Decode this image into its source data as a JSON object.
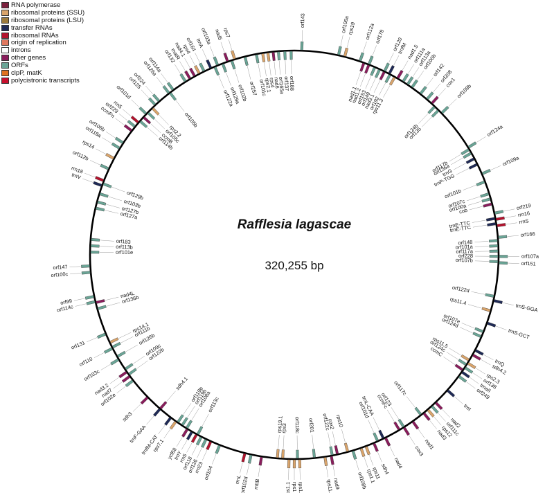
{
  "legend": [
    {
      "label": "RNA polymerase",
      "color": "#7a1f3d"
    },
    {
      "label": "ribosomal proteins (SSU)",
      "color": "#d9a46b"
    },
    {
      "label": "ribosomal proteins (LSU)",
      "color": "#9c7a3c"
    },
    {
      "label": "transfer RNAs",
      "color": "#1f2a56"
    },
    {
      "label": "ribosomal RNAs",
      "color": "#b3122d"
    },
    {
      "label": "origin of replication",
      "color": "#e0785f"
    },
    {
      "label": "introns",
      "color": "#ffffff"
    },
    {
      "label": "other genes",
      "color": "#8a1c5c"
    },
    {
      "label": "ORFs",
      "color": "#6aa596"
    },
    {
      "label": "clpP, matK",
      "color": "#e0721e"
    },
    {
      "label": "polycistronic transcripts",
      "color": "#c8102e"
    }
  ],
  "genome": {
    "title": "Rafflesia lagascae",
    "size": "320,255 bp"
  },
  "genes": [
    {
      "name": "orf143",
      "pos": 0.7,
      "cat": "ORFs",
      "side": "out"
    },
    {
      "name": "orf106a",
      "pos": 4.2,
      "cat": "ORFs",
      "side": "out"
    },
    {
      "name": "rps19",
      "pos": 4.8,
      "cat": "ribosomal proteins (SSU)",
      "side": "out"
    },
    {
      "name": "orf112a",
      "pos": 6.3,
      "cat": "ORFs",
      "side": "out"
    },
    {
      "name": "orf178",
      "pos": 7.2,
      "cat": "ORFs",
      "side": "out"
    },
    {
      "name": "orf120",
      "pos": 8.8,
      "cat": "ORFs",
      "side": "out"
    },
    {
      "name": "trnfM",
      "pos": 9.3,
      "cat": "transfer RNAs",
      "side": "out"
    },
    {
      "name": "nad1.5",
      "pos": 10.2,
      "cat": "other genes",
      "side": "out"
    },
    {
      "name": "orf111a",
      "pos": 10.8,
      "cat": "ORFs",
      "side": "out"
    },
    {
      "name": "orf113a",
      "pos": 11.3,
      "cat": "ORFs",
      "side": "out"
    },
    {
      "name": "orf100b",
      "pos": 11.8,
      "cat": "ORFs",
      "side": "out"
    },
    {
      "name": "orf142",
      "pos": 12.8,
      "cat": "ORFs",
      "side": "out"
    },
    {
      "name": "orf208",
      "pos": 13.6,
      "cat": "ORFs",
      "side": "out"
    },
    {
      "name": "cox1",
      "pos": 14.2,
      "cat": "other genes",
      "side": "out"
    },
    {
      "name": "orf109b",
      "pos": 15.5,
      "cat": "ORFs",
      "side": "out"
    },
    {
      "name": "orf124a",
      "pos": 19.6,
      "cat": "ORFs",
      "side": "out"
    },
    {
      "name": "orf109a",
      "pos": 22.4,
      "cat": "ORFs",
      "side": "out"
    },
    {
      "name": "orf219",
      "pos": 26.3,
      "cat": "ORFs",
      "side": "out"
    },
    {
      "name": "rrn16",
      "pos": 26.9,
      "cat": "ribosomal RNAs",
      "side": "out"
    },
    {
      "name": "rrnS",
      "pos": 27.5,
      "cat": "ribosomal RNAs",
      "side": "out"
    },
    {
      "name": "orf166",
      "pos": 28.6,
      "cat": "ORFs",
      "side": "out"
    },
    {
      "name": "orf107a",
      "pos": 30.4,
      "cat": "ORFs",
      "side": "out"
    },
    {
      "name": "orf151",
      "pos": 31.0,
      "cat": "ORFs",
      "side": "out"
    },
    {
      "name": "trnS-GGA",
      "pos": 34.6,
      "cat": "transfer RNAs",
      "side": "out"
    },
    {
      "name": "trnS-GCT",
      "pos": 36.8,
      "cat": "transfer RNAs",
      "side": "out"
    },
    {
      "name": "trnQ",
      "pos": 39.6,
      "cat": "transfer RNAs",
      "side": "out"
    },
    {
      "name": "sdh4.2",
      "pos": 40.1,
      "cat": "other genes",
      "side": "out"
    },
    {
      "name": "rps2.3",
      "pos": 41.0,
      "cat": "ribosomal proteins (SSU)",
      "side": "out"
    },
    {
      "name": "orf138",
      "pos": 41.5,
      "cat": "ORFs",
      "side": "out"
    },
    {
      "name": "trnaII",
      "pos": 42.0,
      "cat": "transfer RNAs",
      "side": "out"
    },
    {
      "name": "orf249",
      "pos": 42.5,
      "cat": "ORFs",
      "side": "out"
    },
    {
      "name": "trnI",
      "pos": 44.2,
      "cat": "transfer RNAs",
      "side": "out"
    },
    {
      "name": "nad2",
      "pos": 45.8,
      "cat": "other genes",
      "side": "out"
    },
    {
      "name": "orf111c",
      "pos": 46.3,
      "cat": "ORFs",
      "side": "out"
    },
    {
      "name": "rps12",
      "pos": 46.8,
      "cat": "ribosomal proteins (SSU)",
      "side": "out"
    },
    {
      "name": "nad3",
      "pos": 47.3,
      "cat": "other genes",
      "side": "out"
    },
    {
      "name": "nad1",
      "pos": 48.6,
      "cat": "other genes",
      "side": "out"
    },
    {
      "name": "cox3",
      "pos": 49.6,
      "cat": "other genes",
      "side": "out"
    },
    {
      "name": "nad4",
      "pos": 51.6,
      "cat": "other genes",
      "side": "out"
    },
    {
      "name": "sdh4",
      "pos": 52.8,
      "cat": "other genes",
      "side": "out"
    },
    {
      "name": "rps11",
      "pos": 53.6,
      "cat": "ribosomal proteins (SSU)",
      "side": "out"
    },
    {
      "name": "rps1.1",
      "pos": 54.1,
      "cat": "ribosomal proteins (SSU)",
      "side": "out"
    },
    {
      "name": "orf108b",
      "pos": 54.9,
      "cat": "ORFs",
      "side": "out"
    },
    {
      "name": "nad9",
      "pos": 57.0,
      "cat": "other genes",
      "side": "out"
    },
    {
      "name": "rps11.2",
      "pos": 57.6,
      "cat": "ribosomal proteins (SSU)",
      "side": "out"
    },
    {
      "name": "rps1.2",
      "pos": 60.0,
      "cat": "ribosomal proteins (SSU)",
      "side": "out"
    },
    {
      "name": "rps1",
      "pos": 60.5,
      "cat": "ribosomal proteins (SSU)",
      "side": "out"
    },
    {
      "name": "rps1.1",
      "pos": 61.0,
      "cat": "ribosomal proteins (SSU)",
      "side": "out"
    },
    {
      "name": "orf104",
      "pos": 67.7,
      "cat": "ORFs",
      "side": "out"
    },
    {
      "name": "orf102d",
      "pos": 64.6,
      "cat": "ORFs",
      "side": "out"
    },
    {
      "name": "rrnL",
      "pos": 65.2,
      "cat": "ribosomal RNAs",
      "side": "out"
    },
    {
      "name": "mttB",
      "pos": 63.6,
      "cat": "other genes",
      "side": "out"
    },
    {
      "name": "rrn23",
      "pos": 68.6,
      "cat": "ribosomal RNAs",
      "side": "out"
    },
    {
      "name": "orf126",
      "pos": 69.1,
      "cat": "ORFs",
      "side": "out"
    },
    {
      "name": "orf118",
      "pos": 69.6,
      "cat": "ORFs",
      "side": "out"
    },
    {
      "name": "rrn5",
      "pos": 70.1,
      "cat": "ribosomal RNAs",
      "side": "out"
    },
    {
      "name": "trnY",
      "pos": 70.6,
      "cat": "transfer RNAs",
      "side": "out"
    },
    {
      "name": "ycf68",
      "pos": 71.1,
      "cat": "other genes",
      "side": "out"
    },
    {
      "name": "rps7.1",
      "pos": 72.4,
      "cat": "ribosomal proteins (SSU)",
      "side": "out"
    },
    {
      "name": "trnfM-CAT",
      "pos": 73.0,
      "cat": "transfer RNAs",
      "side": "out"
    },
    {
      "name": "trnF-GAA",
      "pos": 74.3,
      "cat": "transfer RNAs",
      "side": "out"
    },
    {
      "name": "sdh3",
      "pos": 75.9,
      "cat": "other genes",
      "side": "out"
    },
    {
      "name": "orf102e",
      "pos": 78.0,
      "cat": "ORFs",
      "side": "out"
    },
    {
      "name": "nad7",
      "pos": 78.5,
      "cat": "other genes",
      "side": "out"
    },
    {
      "name": "nad3.2",
      "pos": 79.0,
      "cat": "other genes",
      "side": "out"
    },
    {
      "name": "orf103c",
      "pos": 80.4,
      "cat": "ORFs",
      "side": "out"
    },
    {
      "name": "orf110",
      "pos": 81.6,
      "cat": "ORFs",
      "side": "out"
    },
    {
      "name": "orf131",
      "pos": 83.1,
      "cat": "ORFs",
      "side": "out"
    },
    {
      "name": "orf114c",
      "pos": 86.3,
      "cat": "ORFs",
      "side": "out"
    },
    {
      "name": "orf99",
      "pos": 86.8,
      "cat": "ORFs",
      "side": "out"
    },
    {
      "name": "orf100c",
      "pos": 89.1,
      "cat": "ORFs",
      "side": "out"
    },
    {
      "name": "orf147",
      "pos": 89.7,
      "cat": "ORFs",
      "side": "out"
    },
    {
      "name": "trnV",
      "pos": 97.4,
      "cat": "transfer RNAs",
      "side": "out"
    },
    {
      "name": "rrn18",
      "pos": 97.9,
      "cat": "ribosomal RNAs",
      "side": "out"
    },
    {
      "name": "orf112b",
      "pos": 99.1,
      "cat": "ORFs",
      "side": "out"
    },
    {
      "name": "rps14",
      "pos": 100.2,
      "cat": "ribosomal proteins (SSU)",
      "side": "out"
    },
    {
      "name": "orf118a",
      "pos": 101.3,
      "cat": "ORFs",
      "side": "out"
    },
    {
      "name": "orf106b",
      "pos": 101.9,
      "cat": "ORFs",
      "side": "out"
    },
    {
      "name": "ccmFn",
      "pos": 103.3,
      "cat": "other genes",
      "side": "out"
    },
    {
      "name": "orf229",
      "pos": 103.8,
      "cat": "ORFs",
      "side": "out"
    },
    {
      "name": "rrn5",
      "pos": 104.3,
      "cat": "ribosomal RNAs",
      "side": "out"
    },
    {
      "name": "orf101d",
      "pos": 105.4,
      "cat": "ORFs",
      "side": "out"
    },
    {
      "name": "orf125",
      "pos": 106.6,
      "cat": "ORFs",
      "side": "out"
    },
    {
      "name": "orf224",
      "pos": 107.1,
      "cat": "ORFs",
      "side": "out"
    },
    {
      "name": "orf126a",
      "pos": 108.3,
      "cat": "ORFs",
      "side": "out"
    },
    {
      "name": "orf114a",
      "pos": 108.8,
      "cat": "ORFs",
      "side": "out"
    },
    {
      "name": "orf132",
      "pos": 110.2,
      "cat": "ORFs",
      "side": "out"
    },
    {
      "name": "matR",
      "pos": 110.7,
      "cat": "other genes",
      "side": "out"
    },
    {
      "name": "nad4.1",
      "pos": 111.2,
      "cat": "other genes",
      "side": "out"
    },
    {
      "name": "rps4",
      "pos": 111.7,
      "cat": "ribosomal proteins (SSU)",
      "side": "out"
    },
    {
      "name": "orf164",
      "pos": 112.2,
      "cat": "ORFs",
      "side": "out"
    },
    {
      "name": "trnA",
      "pos": 112.9,
      "cat": "transfer RNAs",
      "side": "out"
    },
    {
      "name": "orf103a",
      "pos": 113.6,
      "cat": "ORFs",
      "side": "out"
    },
    {
      "name": "nad5",
      "pos": 114.6,
      "cat": "other genes",
      "side": "out"
    },
    {
      "name": "rps7",
      "pos": 115.3,
      "cat": "ribosomal proteins (SSU)",
      "side": "out"
    },
    {
      "name": "orf136a",
      "pos": 20.2,
      "cat": "ORFs",
      "side": "in"
    },
    {
      "name": "orf117b",
      "pos": 19.8,
      "cat": "ORFs",
      "side": "in"
    },
    {
      "name": "trnG",
      "pos": 20.8,
      "cat": "transfer RNAs",
      "side": "in"
    },
    {
      "name": "trnP-TGG",
      "pos": 21.4,
      "cat": "transfer RNAs",
      "side": "in"
    },
    {
      "name": "orf101b",
      "pos": 23.2,
      "cat": "ORFs",
      "side": "in"
    },
    {
      "name": "orf107c",
      "pos": 24.4,
      "cat": "ORFs",
      "side": "in"
    },
    {
      "name": "orf100a",
      "pos": 24.9,
      "cat": "ORFs",
      "side": "in"
    },
    {
      "name": "cob",
      "pos": 25.4,
      "cat": "other genes",
      "side": "in"
    },
    {
      "name": "trnE-TTC",
      "pos": 26.8,
      "cat": "transfer RNAs",
      "side": "in"
    },
    {
      "name": "trnE-TTC",
      "pos": 27.3,
      "cat": "transfer RNAs",
      "side": "in"
    },
    {
      "name": "orf148",
      "pos": 28.9,
      "cat": "ORFs",
      "side": "in"
    },
    {
      "name": "orf101a",
      "pos": 29.4,
      "cat": "ORFs",
      "side": "in"
    },
    {
      "name": "orf117a",
      "pos": 29.9,
      "cat": "ORFs",
      "side": "in"
    },
    {
      "name": "orf228",
      "pos": 30.4,
      "cat": "ORFs",
      "side": "in"
    },
    {
      "name": "orf107b",
      "pos": 30.9,
      "cat": "ORFs",
      "side": "in"
    },
    {
      "name": "orf122d",
      "pos": 34.2,
      "cat": "ORFs",
      "side": "in"
    },
    {
      "name": "rps11.4",
      "pos": 35.6,
      "cat": "ribosomal proteins (SSU)",
      "side": "in"
    },
    {
      "name": "orf107e",
      "pos": 37.7,
      "cat": "ORFs",
      "side": "in"
    },
    {
      "name": "orf124d",
      "pos": 38.2,
      "cat": "ORFs",
      "side": "in"
    },
    {
      "name": "rps11.5",
      "pos": 40.7,
      "cat": "ribosomal proteins (SSU)",
      "side": "in"
    },
    {
      "name": "orf124c",
      "pos": 41.2,
      "cat": "ORFs",
      "side": "in"
    },
    {
      "name": "ccmC",
      "pos": 41.8,
      "cat": "other genes",
      "side": "in"
    },
    {
      "name": "orf117c",
      "pos": 47.6,
      "cat": "ORFs",
      "side": "in"
    },
    {
      "name": "orf123",
      "pos": 49.6,
      "cat": "ORFs",
      "side": "in"
    },
    {
      "name": "ccmFc",
      "pos": 50.1,
      "cat": "other genes",
      "side": "in"
    },
    {
      "name": "trnL-CAA",
      "pos": 51.8,
      "cat": "transfer RNAs",
      "side": "in"
    },
    {
      "name": "orf101d",
      "pos": 52.4,
      "cat": "ORFs",
      "side": "in"
    },
    {
      "name": "rps10",
      "pos": 55.4,
      "cat": "ribosomal proteins (SSU)",
      "side": "in"
    },
    {
      "name": "cox2",
      "pos": 56.4,
      "cat": "other genes",
      "side": "in"
    },
    {
      "name": "orf122c",
      "pos": 56.9,
      "cat": "ORFs",
      "side": "in"
    },
    {
      "name": "orf201",
      "pos": 58.6,
      "cat": "ORFs",
      "side": "in"
    },
    {
      "name": "orf118c",
      "pos": 60.2,
      "cat": "ORFs",
      "side": "in"
    },
    {
      "name": "rps3",
      "pos": 61.6,
      "cat": "ribosomal proteins (SSU)",
      "side": "in"
    },
    {
      "name": "rps19.1",
      "pos": 62.1,
      "cat": "ribosomal proteins (SSU)",
      "side": "in"
    },
    {
      "name": "orf113c",
      "pos": 70.0,
      "cat": "ORFs",
      "side": "in"
    },
    {
      "name": "orf108a",
      "pos": 71.2,
      "cat": "ORFs",
      "side": "in"
    },
    {
      "name": "orf119b",
      "pos": 71.7,
      "cat": "ORFs",
      "side": "in"
    },
    {
      "name": "orf119b",
      "pos": 72.2,
      "cat": "ORFs",
      "side": "in"
    },
    {
      "name": "sdh4.1",
      "pos": 74.3,
      "cat": "other genes",
      "side": "in"
    },
    {
      "name": "orf122b",
      "pos": 78.7,
      "cat": "ORFs",
      "side": "in"
    },
    {
      "name": "orf109c",
      "pos": 79.3,
      "cat": "ORFs",
      "side": "in"
    },
    {
      "name": "orf126b",
      "pos": 80.7,
      "cat": "ORFs",
      "side": "in"
    },
    {
      "name": "orf111b",
      "pos": 81.7,
      "cat": "ORFs",
      "side": "in"
    },
    {
      "name": "rps14.1",
      "pos": 82.2,
      "cat": "ribosomal proteins (SSU)",
      "side": "in"
    },
    {
      "name": "orf136b",
      "pos": 85.6,
      "cat": "ORFs",
      "side": "in"
    },
    {
      "name": "nad4L",
      "pos": 86.2,
      "cat": "other genes",
      "side": "in"
    },
    {
      "name": "orf101e",
      "pos": 91.0,
      "cat": "ORFs",
      "side": "in"
    },
    {
      "name": "orf113b",
      "pos": 91.6,
      "cat": "ORFs",
      "side": "in"
    },
    {
      "name": "orf183",
      "pos": 92.2,
      "cat": "ORFs",
      "side": "in"
    },
    {
      "name": "orf127a",
      "pos": 95.2,
      "cat": "ORFs",
      "side": "in"
    },
    {
      "name": "orf127b",
      "pos": 95.8,
      "cat": "ORFs",
      "side": "in"
    },
    {
      "name": "orf103b",
      "pos": 96.6,
      "cat": "ORFs",
      "side": "in"
    },
    {
      "name": "orf129b",
      "pos": 97.6,
      "cat": "ORFs",
      "side": "in"
    },
    {
      "name": "orf114b",
      "pos": 104.5,
      "cat": "ORFs",
      "side": "in"
    },
    {
      "name": "ccmB",
      "pos": 105.0,
      "cat": "other genes",
      "side": "in"
    },
    {
      "name": "orf105c",
      "pos": 105.6,
      "cat": "ORFs",
      "side": "in"
    },
    {
      "name": "rps2.2",
      "pos": 106.2,
      "cat": "ribosomal proteins (SSU)",
      "side": "in"
    },
    {
      "name": "orf105b",
      "pos": 108.4,
      "cat": "ORFs",
      "side": "in"
    },
    {
      "name": "orf122a",
      "pos": 113.3,
      "cat": "ORFs",
      "side": "in"
    },
    {
      "name": "orf129a",
      "pos": 114.1,
      "cat": "ORFs",
      "side": "in"
    },
    {
      "name": "orf102b",
      "pos": 115.0,
      "cat": "ORFs",
      "side": "in"
    },
    {
      "name": "orf257",
      "pos": 116.3,
      "cat": "ORFs",
      "side": "in"
    },
    {
      "name": "orf101c",
      "pos": 117.4,
      "cat": "ORFs",
      "side": "in"
    },
    {
      "name": "rps2.1",
      "pos": 118.0,
      "cat": "ribosomal proteins (SSU)",
      "side": "in"
    },
    {
      "name": "rps4",
      "pos": 118.5,
      "cat": "ribosomal proteins (SSU)",
      "side": "in"
    },
    {
      "name": "nad6",
      "pos": 119.0,
      "cat": "other genes",
      "side": "in"
    },
    {
      "name": "orf165a",
      "pos": 119.5,
      "cat": "ORFs",
      "side": "in"
    },
    {
      "name": "orf137",
      "pos": 120.1,
      "cat": "ORFs",
      "side": "in"
    },
    {
      "name": "orf188",
      "pos": 120.7,
      "cat": "ORFs",
      "side": "in"
    },
    {
      "name": "nad1.1",
      "pos": 6.7,
      "cat": "other genes",
      "side": "in"
    },
    {
      "name": "nad1.2",
      "pos": 7.2,
      "cat": "other genes",
      "side": "in"
    },
    {
      "name": "orf153",
      "pos": 7.8,
      "cat": "ORFs",
      "side": "in"
    },
    {
      "name": "orf149",
      "pos": 8.3,
      "cat": "ORFs",
      "side": "in"
    },
    {
      "name": "nad3.1",
      "pos": 8.8,
      "cat": "other genes",
      "side": "in"
    },
    {
      "name": "orf192",
      "pos": 9.4,
      "cat": "ORFs",
      "side": "in"
    },
    {
      "name": "rps11.3",
      "pos": 9.9,
      "cat": "ribosomal proteins (SSU)",
      "side": "in"
    },
    {
      "name": "orf124b",
      "pos": 14.6,
      "cat": "ORFs",
      "side": "in"
    },
    {
      "name": "orf135",
      "pos": 15.1,
      "cat": "ORFs",
      "side": "in"
    }
  ]
}
